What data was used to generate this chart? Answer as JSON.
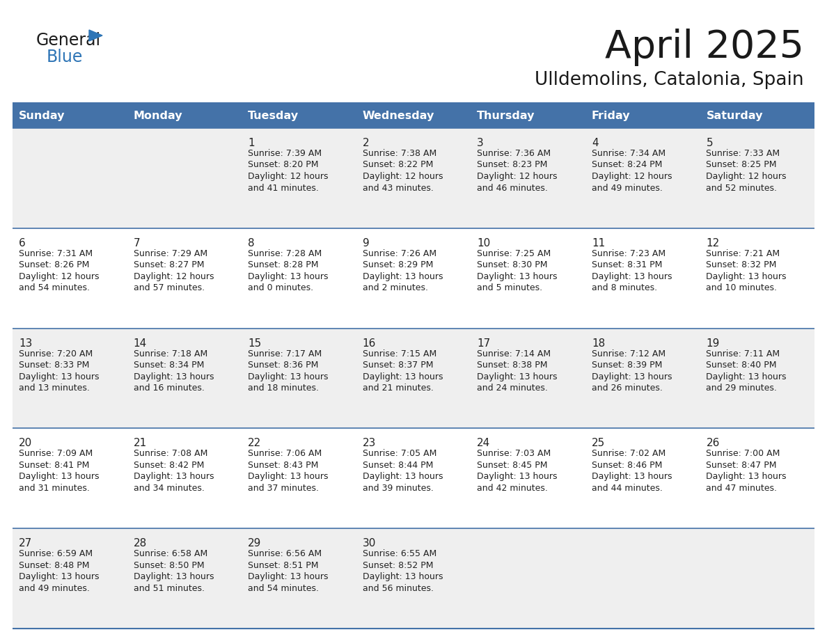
{
  "title": "April 2025",
  "subtitle": "Ulldemolins, Catalonia, Spain",
  "days_of_week": [
    "Sunday",
    "Monday",
    "Tuesday",
    "Wednesday",
    "Thursday",
    "Friday",
    "Saturday"
  ],
  "header_bg": "#4472A8",
  "header_text": "#FFFFFF",
  "cell_bg_light": "#EFEFEF",
  "cell_bg_white": "#FFFFFF",
  "row_line_color": "#4472A8",
  "text_color": "#222222",
  "title_color": "#1a1a1a",
  "calendar_data": [
    [
      null,
      null,
      {
        "day": 1,
        "sunrise": "7:39 AM",
        "sunset": "8:20 PM",
        "daylight": "12 hours",
        "daylight2": "and 41 minutes."
      },
      {
        "day": 2,
        "sunrise": "7:38 AM",
        "sunset": "8:22 PM",
        "daylight": "12 hours",
        "daylight2": "and 43 minutes."
      },
      {
        "day": 3,
        "sunrise": "7:36 AM",
        "sunset": "8:23 PM",
        "daylight": "12 hours",
        "daylight2": "and 46 minutes."
      },
      {
        "day": 4,
        "sunrise": "7:34 AM",
        "sunset": "8:24 PM",
        "daylight": "12 hours",
        "daylight2": "and 49 minutes."
      },
      {
        "day": 5,
        "sunrise": "7:33 AM",
        "sunset": "8:25 PM",
        "daylight": "12 hours",
        "daylight2": "and 52 minutes."
      }
    ],
    [
      {
        "day": 6,
        "sunrise": "7:31 AM",
        "sunset": "8:26 PM",
        "daylight": "12 hours",
        "daylight2": "and 54 minutes."
      },
      {
        "day": 7,
        "sunrise": "7:29 AM",
        "sunset": "8:27 PM",
        "daylight": "12 hours",
        "daylight2": "and 57 minutes."
      },
      {
        "day": 8,
        "sunrise": "7:28 AM",
        "sunset": "8:28 PM",
        "daylight": "13 hours",
        "daylight2": "and 0 minutes."
      },
      {
        "day": 9,
        "sunrise": "7:26 AM",
        "sunset": "8:29 PM",
        "daylight": "13 hours",
        "daylight2": "and 2 minutes."
      },
      {
        "day": 10,
        "sunrise": "7:25 AM",
        "sunset": "8:30 PM",
        "daylight": "13 hours",
        "daylight2": "and 5 minutes."
      },
      {
        "day": 11,
        "sunrise": "7:23 AM",
        "sunset": "8:31 PM",
        "daylight": "13 hours",
        "daylight2": "and 8 minutes."
      },
      {
        "day": 12,
        "sunrise": "7:21 AM",
        "sunset": "8:32 PM",
        "daylight": "13 hours",
        "daylight2": "and 10 minutes."
      }
    ],
    [
      {
        "day": 13,
        "sunrise": "7:20 AM",
        "sunset": "8:33 PM",
        "daylight": "13 hours",
        "daylight2": "and 13 minutes."
      },
      {
        "day": 14,
        "sunrise": "7:18 AM",
        "sunset": "8:34 PM",
        "daylight": "13 hours",
        "daylight2": "and 16 minutes."
      },
      {
        "day": 15,
        "sunrise": "7:17 AM",
        "sunset": "8:36 PM",
        "daylight": "13 hours",
        "daylight2": "and 18 minutes."
      },
      {
        "day": 16,
        "sunrise": "7:15 AM",
        "sunset": "8:37 PM",
        "daylight": "13 hours",
        "daylight2": "and 21 minutes."
      },
      {
        "day": 17,
        "sunrise": "7:14 AM",
        "sunset": "8:38 PM",
        "daylight": "13 hours",
        "daylight2": "and 24 minutes."
      },
      {
        "day": 18,
        "sunrise": "7:12 AM",
        "sunset": "8:39 PM",
        "daylight": "13 hours",
        "daylight2": "and 26 minutes."
      },
      {
        "day": 19,
        "sunrise": "7:11 AM",
        "sunset": "8:40 PM",
        "daylight": "13 hours",
        "daylight2": "and 29 minutes."
      }
    ],
    [
      {
        "day": 20,
        "sunrise": "7:09 AM",
        "sunset": "8:41 PM",
        "daylight": "13 hours",
        "daylight2": "and 31 minutes."
      },
      {
        "day": 21,
        "sunrise": "7:08 AM",
        "sunset": "8:42 PM",
        "daylight": "13 hours",
        "daylight2": "and 34 minutes."
      },
      {
        "day": 22,
        "sunrise": "7:06 AM",
        "sunset": "8:43 PM",
        "daylight": "13 hours",
        "daylight2": "and 37 minutes."
      },
      {
        "day": 23,
        "sunrise": "7:05 AM",
        "sunset": "8:44 PM",
        "daylight": "13 hours",
        "daylight2": "and 39 minutes."
      },
      {
        "day": 24,
        "sunrise": "7:03 AM",
        "sunset": "8:45 PM",
        "daylight": "13 hours",
        "daylight2": "and 42 minutes."
      },
      {
        "day": 25,
        "sunrise": "7:02 AM",
        "sunset": "8:46 PM",
        "daylight": "13 hours",
        "daylight2": "and 44 minutes."
      },
      {
        "day": 26,
        "sunrise": "7:00 AM",
        "sunset": "8:47 PM",
        "daylight": "13 hours",
        "daylight2": "and 47 minutes."
      }
    ],
    [
      {
        "day": 27,
        "sunrise": "6:59 AM",
        "sunset": "8:48 PM",
        "daylight": "13 hours",
        "daylight2": "and 49 minutes."
      },
      {
        "day": 28,
        "sunrise": "6:58 AM",
        "sunset": "8:50 PM",
        "daylight": "13 hours",
        "daylight2": "and 51 minutes."
      },
      {
        "day": 29,
        "sunrise": "6:56 AM",
        "sunset": "8:51 PM",
        "daylight": "13 hours",
        "daylight2": "and 54 minutes."
      },
      {
        "day": 30,
        "sunrise": "6:55 AM",
        "sunset": "8:52 PM",
        "daylight": "13 hours",
        "daylight2": "and 56 minutes."
      },
      null,
      null,
      null
    ]
  ],
  "logo_triangle_color": "#2E75B6"
}
